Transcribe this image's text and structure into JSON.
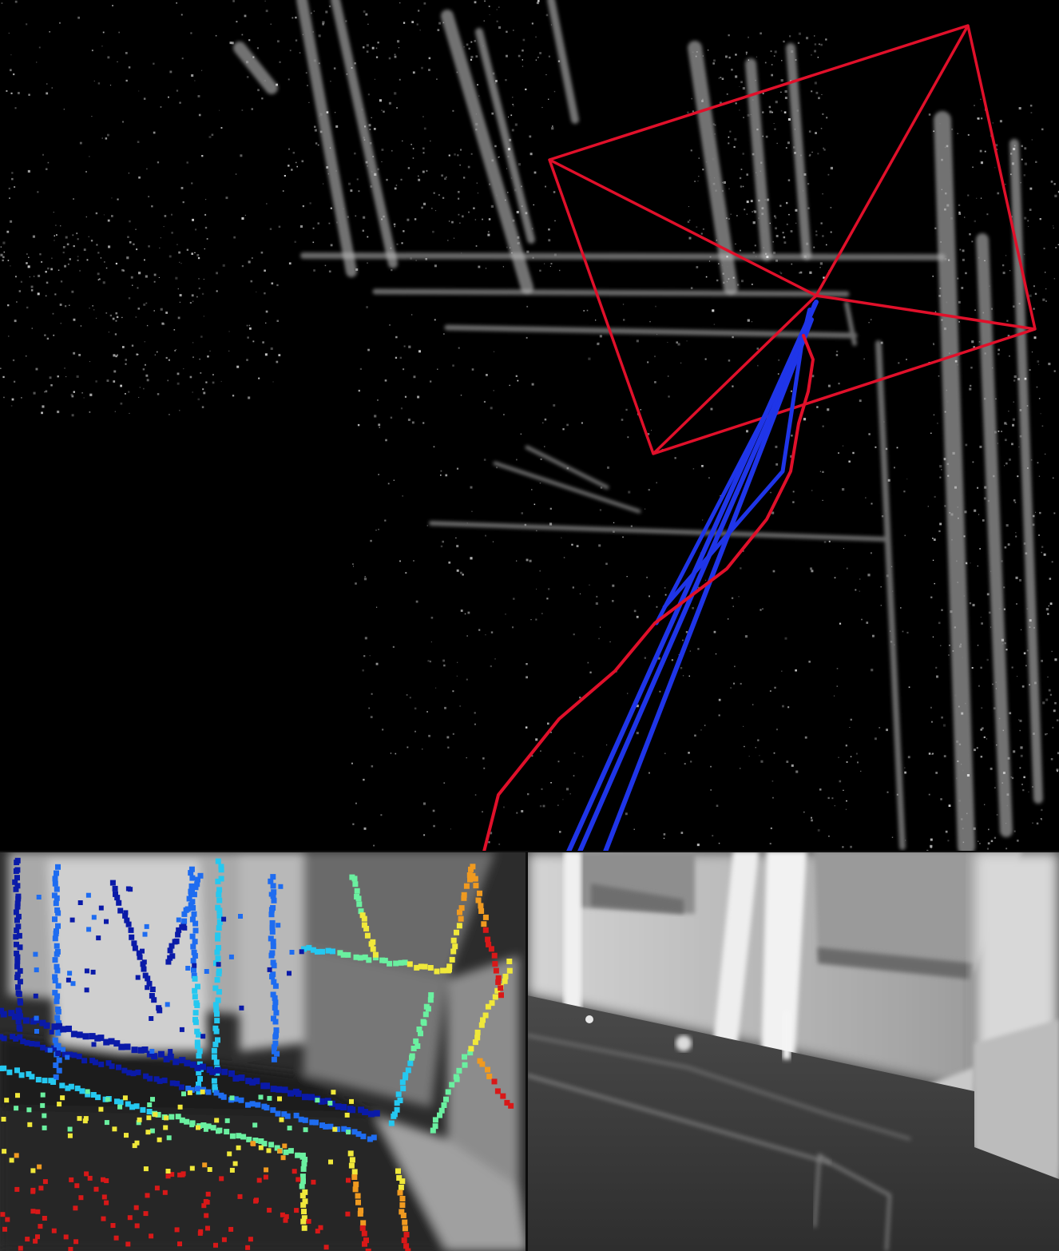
{
  "colors": {
    "background": "#000000",
    "point_cloud": "#cfcfcf",
    "camera_frustum": "#e0102a",
    "trajectory_estimate": "#e0102a",
    "trajectory_reference": "#1f35e8",
    "depth_colormap": [
      "#0a1aa8",
      "#1e6cf0",
      "#25c8f0",
      "#6af0a0",
      "#f0e83a",
      "#f09a20",
      "#d81818"
    ]
  },
  "map_view": {
    "icon": "point-cloud-map",
    "camera_icon": "camera-frustum-icon"
  },
  "depth_overlay_view": {
    "icon": "depth-colored-keypoints"
  },
  "gray_frame_view": {
    "icon": "grayscale-camera-frame"
  }
}
